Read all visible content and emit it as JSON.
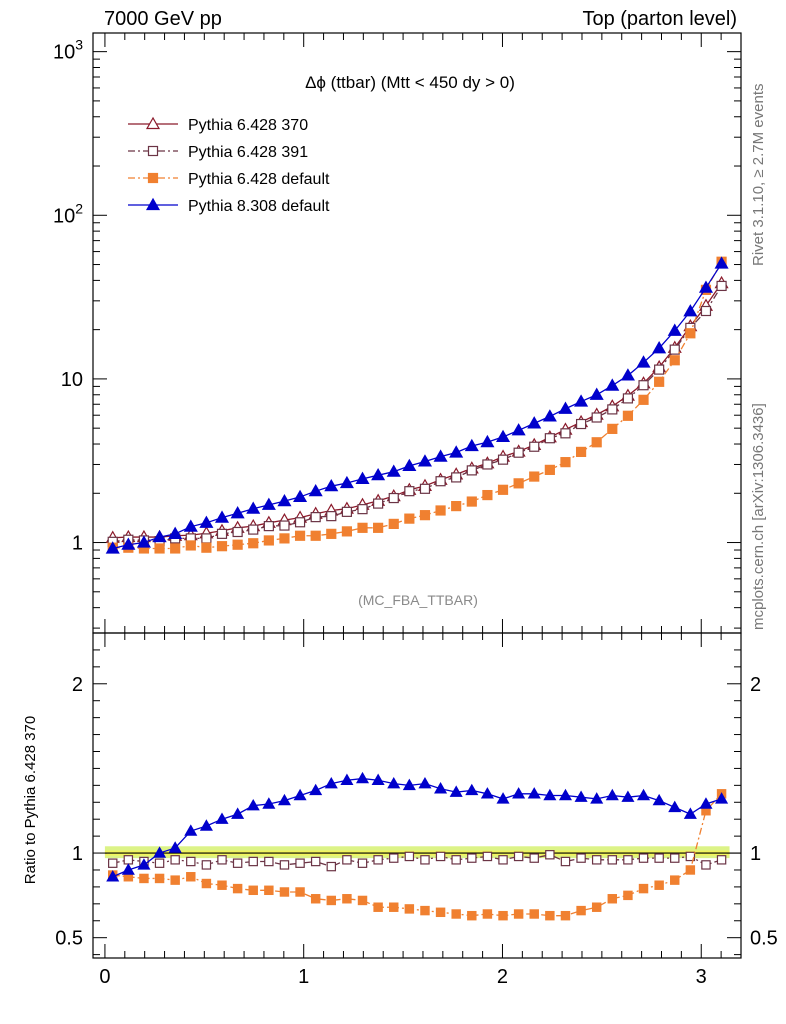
{
  "header": {
    "left": "7000 GeV pp",
    "right": "Top (parton level)"
  },
  "side_labels": {
    "rivet": "Rivet 3.1.10, ≥ 2.7M events",
    "mcplots": "mcplots.cern.ch [arXiv:1306.3436]"
  },
  "chart_data": {
    "type": "line",
    "title": "Δϕ (ttbar) (Mtt < 450 dy > 0)",
    "watermark": "(MC_FBA_TTBAR)",
    "x_ticks": [
      "0",
      "1",
      "2",
      "3"
    ],
    "xlim": [
      -0.06,
      3.2
    ],
    "main": {
      "yscale": "log",
      "ylim": [
        0.28,
        1300
      ],
      "y_ticks": [
        "1",
        "10",
        "10^2",
        "10^3"
      ]
    },
    "ratio": {
      "ylabel": "Ratio to Pythia 6.428 370",
      "ylim": [
        0.38,
        2.3
      ],
      "y_ticks": [
        "0.5",
        "1",
        "2"
      ],
      "reference_line": 1,
      "band": [
        0.97,
        1.04
      ]
    },
    "x": [
      0.0393,
      0.1178,
      0.1963,
      0.2749,
      0.3534,
      0.432,
      0.5105,
      0.589,
      0.6676,
      0.7461,
      0.8247,
      0.9032,
      0.9817,
      1.0603,
      1.1388,
      1.2174,
      1.2959,
      1.3744,
      1.453,
      1.5315,
      1.6101,
      1.6886,
      1.7671,
      1.8457,
      1.9242,
      2.0028,
      2.0813,
      2.1598,
      2.2384,
      2.3169,
      2.3955,
      2.474,
      2.5525,
      2.6311,
      2.7096,
      2.7882,
      2.8667,
      2.9452,
      3.0238,
      3.1023
    ],
    "series": [
      {
        "name": "Pythia 6.428 370",
        "color": "#8b1a2b",
        "line": "solid",
        "marker": "triangle-open",
        "values": [
          1.07,
          1.08,
          1.08,
          1.08,
          1.1,
          1.11,
          1.14,
          1.18,
          1.23,
          1.26,
          1.32,
          1.37,
          1.42,
          1.5,
          1.57,
          1.61,
          1.7,
          1.8,
          1.92,
          2.1,
          2.22,
          2.42,
          2.61,
          2.84,
          3.05,
          3.35,
          3.6,
          3.95,
          4.4,
          4.9,
          5.45,
          6.05,
          6.8,
          7.9,
          9.4,
          11.8,
          15.5,
          21.0,
          28.0,
          38.5
        ]
      },
      {
        "name": "Pythia 6.428 391",
        "color": "#6b3445",
        "line": "dashdot",
        "marker": "square-open",
        "values": [
          1.01,
          1.04,
          1.03,
          1.02,
          1.06,
          1.06,
          1.06,
          1.13,
          1.16,
          1.2,
          1.26,
          1.27,
          1.33,
          1.43,
          1.45,
          1.54,
          1.6,
          1.73,
          1.87,
          2.06,
          2.13,
          2.37,
          2.5,
          2.76,
          3.0,
          3.21,
          3.54,
          3.85,
          4.34,
          4.65,
          5.3,
          5.81,
          6.51,
          7.6,
          9.15,
          11.4,
          15.1,
          20.5,
          26.0,
          37.0
        ]
      },
      {
        "name": "Pythia 6.428 default",
        "color": "#f08030",
        "line": "dashdot",
        "marker": "square-filled",
        "values": [
          0.93,
          0.93,
          0.92,
          0.92,
          0.92,
          0.96,
          0.93,
          0.95,
          0.97,
          0.99,
          1.03,
          1.06,
          1.1,
          1.1,
          1.13,
          1.17,
          1.23,
          1.23,
          1.3,
          1.4,
          1.47,
          1.57,
          1.67,
          1.78,
          1.95,
          2.1,
          2.3,
          2.53,
          2.78,
          3.1,
          3.58,
          4.1,
          4.95,
          5.95,
          7.45,
          9.6,
          13.0,
          19.0,
          35.0,
          52.0
        ]
      },
      {
        "name": "Pythia 8.308 default",
        "color": "#0000cc",
        "line": "solid",
        "marker": "triangle-filled",
        "values": [
          0.92,
          0.97,
          1.0,
          1.08,
          1.13,
          1.25,
          1.32,
          1.42,
          1.51,
          1.61,
          1.7,
          1.79,
          1.9,
          2.06,
          2.21,
          2.31,
          2.45,
          2.58,
          2.71,
          2.94,
          3.13,
          3.35,
          3.55,
          3.89,
          4.11,
          4.42,
          4.85,
          5.35,
          5.9,
          6.57,
          7.27,
          8.0,
          9.1,
          10.5,
          12.6,
          15.4,
          19.7,
          25.9,
          36.1,
          50.7
        ]
      }
    ],
    "ratio_values": [
      [
        1,
        1,
        1,
        1,
        1,
        1,
        1,
        1,
        1,
        1,
        1,
        1,
        1,
        1,
        1,
        1,
        1,
        1,
        1,
        1,
        1,
        1,
        1,
        1,
        1,
        1,
        1,
        1,
        1,
        1,
        1,
        1,
        1,
        1,
        1,
        1,
        1,
        1,
        1,
        1
      ],
      [
        0.94,
        0.96,
        0.95,
        0.94,
        0.96,
        0.95,
        0.93,
        0.96,
        0.94,
        0.95,
        0.95,
        0.93,
        0.94,
        0.95,
        0.92,
        0.96,
        0.94,
        0.96,
        0.97,
        0.98,
        0.96,
        0.98,
        0.96,
        0.97,
        0.98,
        0.96,
        0.98,
        0.97,
        0.99,
        0.95,
        0.97,
        0.96,
        0.96,
        0.96,
        0.97,
        0.97,
        0.97,
        0.98,
        0.93,
        0.96
      ],
      [
        0.87,
        0.86,
        0.85,
        0.85,
        0.84,
        0.86,
        0.82,
        0.81,
        0.79,
        0.78,
        0.78,
        0.77,
        0.77,
        0.73,
        0.72,
        0.73,
        0.72,
        0.68,
        0.68,
        0.67,
        0.66,
        0.65,
        0.64,
        0.63,
        0.64,
        0.63,
        0.64,
        0.64,
        0.63,
        0.63,
        0.66,
        0.68,
        0.73,
        0.75,
        0.79,
        0.81,
        0.84,
        0.9,
        1.25,
        1.35
      ],
      [
        0.86,
        0.9,
        0.93,
        1.0,
        1.03,
        1.13,
        1.16,
        1.2,
        1.23,
        1.28,
        1.29,
        1.31,
        1.34,
        1.37,
        1.41,
        1.43,
        1.44,
        1.43,
        1.41,
        1.4,
        1.41,
        1.38,
        1.36,
        1.37,
        1.35,
        1.32,
        1.35,
        1.35,
        1.34,
        1.34,
        1.33,
        1.32,
        1.34,
        1.33,
        1.34,
        1.31,
        1.27,
        1.23,
        1.29,
        1.32
      ]
    ]
  }
}
